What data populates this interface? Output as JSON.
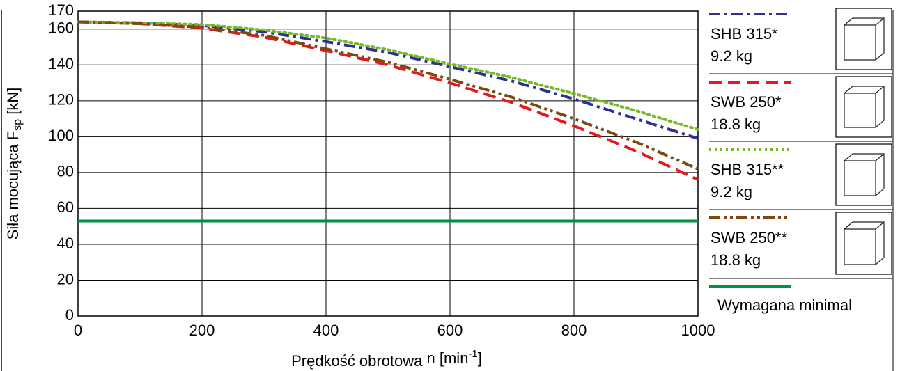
{
  "chart_data": {
    "type": "line",
    "ylabel_parts": [
      "Siła mocująca F",
      "sp",
      " [kN]"
    ],
    "xlabel_parts": [
      "Prędkość obrotowa ",
      "n [min",
      "-1",
      "]"
    ],
    "x": [
      0,
      100,
      200,
      300,
      400,
      500,
      600,
      700,
      800,
      900,
      1000
    ],
    "series": [
      {
        "name": "SHB 315*",
        "weight": "9.2 kg",
        "color": "#2e3192",
        "style": "dashdot",
        "values": [
          164,
          163.5,
          162,
          158.5,
          153,
          147,
          139,
          131,
          121,
          110,
          99
        ]
      },
      {
        "name": "SWB 250*",
        "weight": "18.8 kg",
        "color": "#e3191f",
        "style": "dashed",
        "values": [
          164,
          163,
          160.5,
          155.5,
          148,
          140,
          130,
          119,
          106,
          92,
          76
        ]
      },
      {
        "name": "SHB 315**",
        "weight": "9.2 kg",
        "color": "#76b82a",
        "style": "dotted",
        "values": [
          164,
          163.5,
          162.5,
          159.5,
          155,
          148.5,
          140.5,
          133,
          124,
          114.5,
          104
        ]
      },
      {
        "name": "SWB 250**",
        "weight": "18.8 kg",
        "color": "#7b4a12",
        "style": "dashdotdot",
        "values": [
          164,
          163,
          161,
          156.5,
          149,
          141.5,
          132,
          122,
          110,
          97,
          82
        ]
      },
      {
        "name": "Wymagana minimal",
        "color": "#009245",
        "style": "solid",
        "values": [
          53,
          53,
          53,
          53,
          53,
          53,
          53,
          53,
          53,
          53,
          53
        ]
      }
    ],
    "xlim": [
      0,
      1000
    ],
    "ylim": [
      0,
      170
    ],
    "xticks": [
      0,
      200,
      400,
      600,
      800,
      1000
    ],
    "yticks": [
      0,
      20,
      40,
      60,
      80,
      100,
      120,
      140,
      160,
      170
    ],
    "grid": true
  }
}
